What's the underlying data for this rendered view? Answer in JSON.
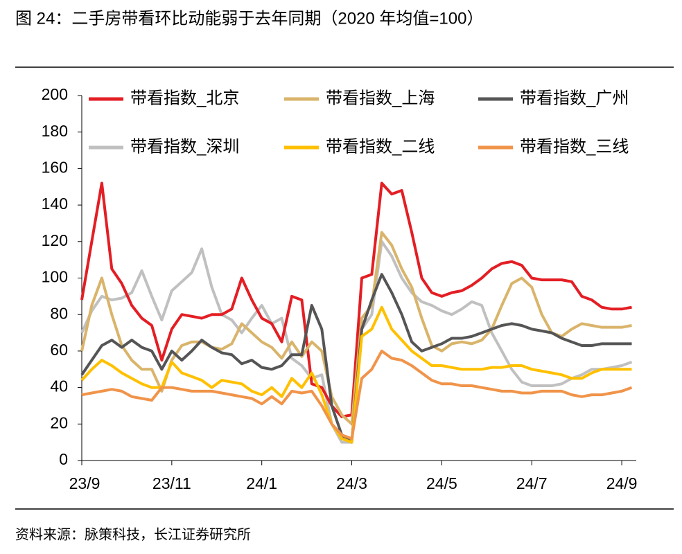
{
  "chart_data": {
    "type": "line",
    "title": "图  24：二手房带看环比动能弱于去年同期（2020 年均值=100）",
    "source": "资料来源：脉策科技，长江证券研究所",
    "categories": [
      "23/9",
      null,
      null,
      null,
      null,
      null,
      null,
      null,
      null,
      "23/11",
      null,
      null,
      null,
      null,
      null,
      null,
      null,
      null,
      "24/1",
      null,
      null,
      null,
      null,
      null,
      null,
      null,
      null,
      "24/3",
      null,
      null,
      null,
      null,
      null,
      null,
      null,
      null,
      "24/5",
      null,
      null,
      null,
      null,
      null,
      null,
      null,
      null,
      "24/7",
      null,
      null,
      null,
      null,
      null,
      null,
      null,
      null,
      "24/9",
      null
    ],
    "ylim": [
      0,
      200
    ],
    "yticks": [
      0,
      20,
      40,
      60,
      80,
      100,
      120,
      140,
      160,
      180,
      200
    ],
    "legend": "top",
    "series": [
      {
        "name": "带看指数_北京",
        "color": "#e31e24",
        "values": [
          88,
          120,
          152,
          105,
          97,
          85,
          78,
          74,
          55,
          72,
          80,
          79,
          78,
          80,
          80,
          83,
          100,
          88,
          78,
          75,
          65,
          90,
          88,
          42,
          40,
          30,
          24,
          25,
          100,
          102,
          152,
          146,
          148,
          125,
          100,
          92,
          90,
          92,
          93,
          96,
          100,
          105,
          108,
          109,
          107,
          100,
          99,
          99,
          99,
          98,
          90,
          88,
          84,
          83,
          83,
          84
        ]
      },
      {
        "name": "带看指数_上海",
        "color": "#d9b46a",
        "values": [
          60,
          85,
          100,
          80,
          63,
          55,
          50,
          50,
          38,
          55,
          63,
          65,
          65,
          62,
          61,
          64,
          75,
          70,
          65,
          62,
          56,
          65,
          57,
          65,
          60,
          35,
          25,
          20,
          78,
          85,
          125,
          118,
          105,
          95,
          78,
          63,
          60,
          64,
          65,
          64,
          66,
          72,
          85,
          97,
          100,
          95,
          80,
          70,
          68,
          72,
          75,
          74,
          73,
          73,
          73,
          74
        ]
      },
      {
        "name": "带看指数_广州",
        "color": "#555555",
        "values": [
          47,
          55,
          63,
          66,
          62,
          66,
          62,
          60,
          50,
          60,
          55,
          60,
          66,
          62,
          59,
          58,
          53,
          55,
          51,
          50,
          52,
          58,
          58,
          85,
          72,
          30,
          14,
          10,
          72,
          88,
          102,
          92,
          80,
          65,
          60,
          62,
          64,
          67,
          67,
          68,
          70,
          72,
          74,
          75,
          74,
          72,
          71,
          70,
          67,
          65,
          63,
          63,
          64,
          64,
          64,
          64
        ]
      },
      {
        "name": "带看指数_深圳",
        "color": "#c0c0c0",
        "values": [
          70,
          82,
          90,
          88,
          89,
          92,
          104,
          90,
          77,
          93,
          98,
          103,
          116,
          95,
          80,
          77,
          70,
          78,
          85,
          75,
          78,
          56,
          52,
          45,
          47,
          20,
          10,
          10,
          72,
          80,
          120,
          112,
          100,
          92,
          87,
          85,
          82,
          80,
          83,
          87,
          85,
          70,
          60,
          50,
          43,
          41,
          41,
          41,
          42,
          45,
          47,
          50,
          50,
          51,
          52,
          54
        ]
      },
      {
        "name": "带看指数_二线",
        "color": "#ffc000",
        "values": [
          44,
          50,
          55,
          52,
          48,
          45,
          42,
          40,
          40,
          54,
          48,
          46,
          44,
          40,
          44,
          43,
          42,
          38,
          36,
          40,
          35,
          45,
          40,
          48,
          36,
          20,
          12,
          10,
          68,
          72,
          84,
          72,
          66,
          60,
          56,
          52,
          52,
          51,
          50,
          50,
          50,
          51,
          51,
          52,
          52,
          50,
          49,
          48,
          47,
          45,
          45,
          48,
          50,
          50,
          50,
          50
        ]
      },
      {
        "name": "带看指数_三线",
        "color": "#f0944a",
        "values": [
          36,
          37,
          38,
          39,
          38,
          35,
          34,
          33,
          40,
          40,
          39,
          38,
          38,
          38,
          37,
          36,
          35,
          34,
          31,
          35,
          31,
          38,
          37,
          38,
          30,
          20,
          14,
          12,
          45,
          50,
          60,
          56,
          55,
          52,
          48,
          44,
          42,
          42,
          41,
          41,
          40,
          39,
          38,
          38,
          37,
          37,
          38,
          38,
          38,
          36,
          35,
          36,
          36,
          37,
          38,
          40
        ]
      }
    ]
  }
}
